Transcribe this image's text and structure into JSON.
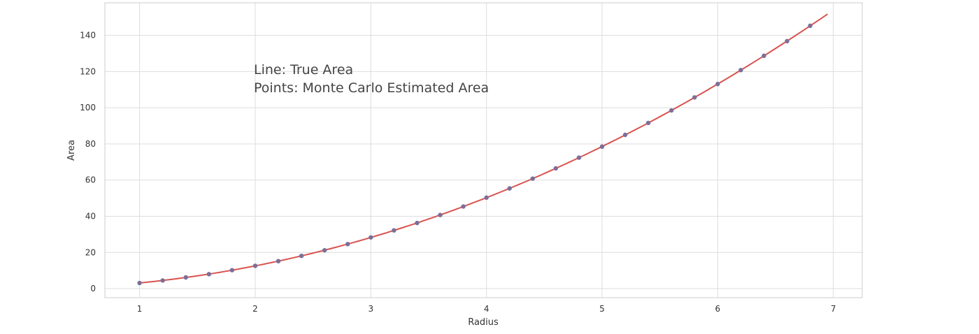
{
  "chart_data": {
    "type": "line",
    "xlabel": "Radius",
    "ylabel": "Area",
    "xlim": [
      0.7,
      7.25
    ],
    "ylim": [
      -5,
      158
    ],
    "xticks": [
      1,
      2,
      3,
      4,
      5,
      6,
      7
    ],
    "yticks": [
      0,
      20,
      40,
      60,
      80,
      100,
      120,
      140
    ],
    "grid": true,
    "annotation_lines": [
      "Line: True Area",
      "Points: Monte Carlo Estimated Area"
    ],
    "series": [
      {
        "kind": "line",
        "color": "#d9534f",
        "x": [
          1.0,
          1.6,
          2.2,
          2.8,
          3.4,
          4.0,
          4.6,
          5.2,
          5.8,
          6.4,
          6.95
        ],
        "y": [
          3.14,
          8.04,
          15.21,
          24.63,
          36.32,
          50.27,
          66.48,
          84.95,
          105.68,
          128.68,
          151.75
        ]
      },
      {
        "kind": "scatter",
        "color": "#7a6f99",
        "x": [
          1.0,
          1.2,
          1.4,
          1.6,
          1.8,
          2.0,
          2.2,
          2.4,
          2.6,
          2.8,
          3.0,
          3.2,
          3.4,
          3.6,
          3.8,
          4.0,
          4.2,
          4.4,
          4.6,
          4.8,
          5.0,
          5.2,
          5.4,
          5.6,
          5.8,
          6.0,
          6.2,
          6.4,
          6.6,
          6.8
        ],
        "y": [
          3.1,
          4.5,
          6.2,
          8.0,
          10.2,
          12.6,
          15.2,
          18.1,
          21.2,
          24.6,
          28.3,
          32.2,
          36.3,
          40.7,
          45.4,
          50.3,
          55.4,
          60.8,
          66.5,
          72.4,
          78.5,
          85.0,
          91.6,
          98.5,
          105.7,
          113.1,
          120.8,
          128.7,
          136.8,
          145.3
        ]
      }
    ]
  }
}
